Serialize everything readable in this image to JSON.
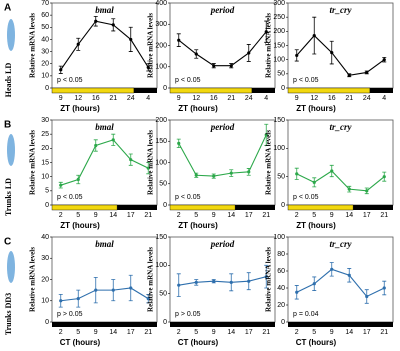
{
  "panels": [
    {
      "letter": "A",
      "label": "Heads LD"
    },
    {
      "letter": "B",
      "label": "Trunks LD"
    },
    {
      "letter": "C",
      "label": "Trunks DD3"
    }
  ],
  "chart_data": [
    {
      "type": "line",
      "title": "bmal",
      "y_label": "Relative mRNA levels",
      "x_label": "ZT (hours)",
      "annotation": "p < 0.05",
      "color": "#000000",
      "categories": [
        "9",
        "12",
        "16",
        "21",
        "24",
        "4"
      ],
      "values": [
        15,
        36,
        55,
        52,
        40,
        17
      ],
      "errors": [
        3,
        5,
        4,
        5,
        10,
        3
      ],
      "ylim": [
        0,
        70
      ],
      "yticks": [
        0,
        10,
        20,
        30,
        40,
        50,
        60,
        70
      ]
    },
    {
      "type": "line",
      "title": "period",
      "y_label": "Relative mRNA levels",
      "x_label": "ZT (hours)",
      "annotation": "p < 0.05",
      "color": "#000000",
      "categories": [
        "9",
        "12",
        "16",
        "21",
        "24",
        "4"
      ],
      "values": [
        225,
        160,
        105,
        105,
        165,
        265
      ],
      "errors": [
        30,
        20,
        10,
        10,
        40,
        50
      ],
      "ylim": [
        0,
        400
      ],
      "yticks": [
        0,
        100,
        200,
        300,
        400
      ]
    },
    {
      "type": "line",
      "title": "tr_cry",
      "y_label": "Relative mRNA levels",
      "x_label": "ZT (hours)",
      "annotation": "p < 0.05",
      "color": "#000000",
      "categories": [
        "9",
        "12",
        "16",
        "21",
        "24",
        "4"
      ],
      "values": [
        115,
        185,
        125,
        45,
        55,
        100
      ],
      "errors": [
        20,
        65,
        40,
        5,
        5,
        8
      ],
      "ylim": [
        0,
        300
      ],
      "yticks": [
        0,
        50,
        100,
        150,
        200,
        250,
        300
      ]
    },
    {
      "type": "line",
      "title": "bmal",
      "y_label": "Relative mRNA levels",
      "x_label": "ZT (hours)",
      "annotation": "p < 0.05",
      "color": "#2ca84a",
      "categories": [
        "2",
        "5",
        "9",
        "14",
        "17",
        "21"
      ],
      "values": [
        7,
        9,
        21,
        23,
        16,
        13
      ],
      "errors": [
        1,
        1.5,
        2,
        2,
        2,
        2
      ],
      "ylim": [
        0,
        30
      ],
      "yticks": [
        0,
        5,
        10,
        15,
        20,
        25,
        30
      ]
    },
    {
      "type": "line",
      "title": "period",
      "y_label": "Relative mRNA levels",
      "x_label": "ZT (hours)",
      "annotation": "p < 0.05",
      "color": "#2ca84a",
      "categories": [
        "2",
        "5",
        "9",
        "14",
        "17",
        "21"
      ],
      "values": [
        145,
        70,
        68,
        75,
        78,
        165
      ],
      "errors": [
        10,
        5,
        5,
        8,
        8,
        25
      ],
      "ylim": [
        0,
        200
      ],
      "yticks": [
        0,
        50,
        100,
        150,
        200
      ]
    },
    {
      "type": "line",
      "title": "tr_cry",
      "y_label": "Relative mRNA levels",
      "x_label": "ZT (hours)",
      "annotation": "p < 0.05",
      "color": "#2ca84a",
      "categories": [
        "2",
        "5",
        "9",
        "14",
        "17",
        "21"
      ],
      "values": [
        55,
        40,
        60,
        28,
        25,
        50
      ],
      "errors": [
        10,
        8,
        10,
        5,
        5,
        8
      ],
      "ylim": [
        0,
        150
      ],
      "yticks": [
        0,
        50,
        100,
        150
      ]
    },
    {
      "type": "line",
      "title": "bmal",
      "y_label": "Relative mRNA levels",
      "x_label": "CT (hours)",
      "annotation": "p > 0.05",
      "color": "#2e6fad",
      "categories": [
        "2",
        "5",
        "9",
        "14",
        "17",
        "21"
      ],
      "values": [
        10,
        11,
        15,
        15,
        16,
        11
      ],
      "errors": [
        3,
        4,
        6,
        5,
        6,
        2
      ],
      "ylim": [
        0,
        40
      ],
      "yticks": [
        0,
        10,
        20,
        30,
        40
      ]
    },
    {
      "type": "line",
      "title": "period",
      "y_label": "Relative mRNA levels",
      "x_label": "CT (hours)",
      "annotation": "p > 0.05",
      "color": "#2e6fad",
      "categories": [
        "2",
        "5",
        "9",
        "14",
        "17",
        "21"
      ],
      "values": [
        65,
        70,
        72,
        70,
        72,
        80
      ],
      "errors": [
        20,
        5,
        3,
        15,
        15,
        20
      ],
      "ylim": [
        0,
        150
      ],
      "yticks": [
        0,
        50,
        100,
        150
      ]
    },
    {
      "type": "line",
      "title": "tr_cry",
      "y_label": "Relative mRNA levels",
      "x_label": "CT (hours)",
      "annotation": "p = 0.04",
      "color": "#2e6fad",
      "categories": [
        "2",
        "5",
        "9",
        "14",
        "17",
        "21"
      ],
      "values": [
        35,
        45,
        62,
        55,
        30,
        40
      ],
      "errors": [
        8,
        8,
        8,
        8,
        8,
        8
      ],
      "ylim": [
        0,
        100
      ],
      "yticks": [
        0,
        20,
        40,
        60,
        80,
        100
      ]
    }
  ]
}
